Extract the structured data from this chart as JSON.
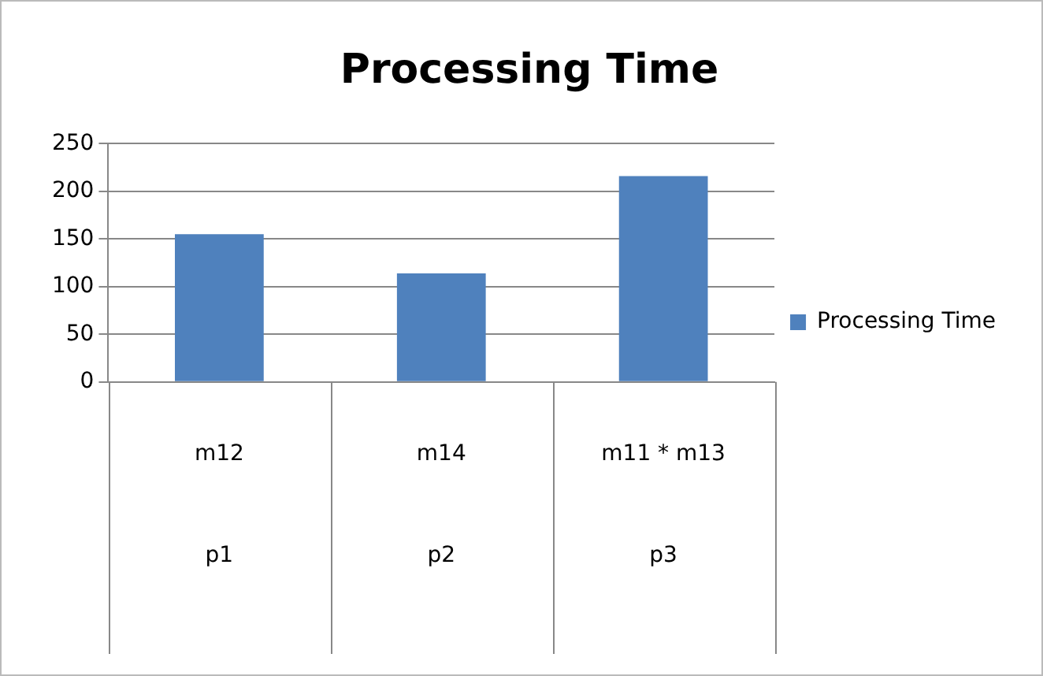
{
  "chart_data": {
    "type": "bar",
    "title": "Processing Time",
    "categories": [
      "m12",
      "m14",
      "m11 * m13"
    ],
    "annotations": [
      "p1",
      "p2",
      "p3"
    ],
    "series": [
      {
        "name": "Processing Time",
        "color": "#4f81bd",
        "values": [
          155,
          114,
          216
        ]
      }
    ],
    "ylim": [
      0,
      250
    ],
    "yticks": [
      0,
      50,
      100,
      150,
      200,
      250
    ],
    "grid": "y",
    "legend": "right"
  }
}
